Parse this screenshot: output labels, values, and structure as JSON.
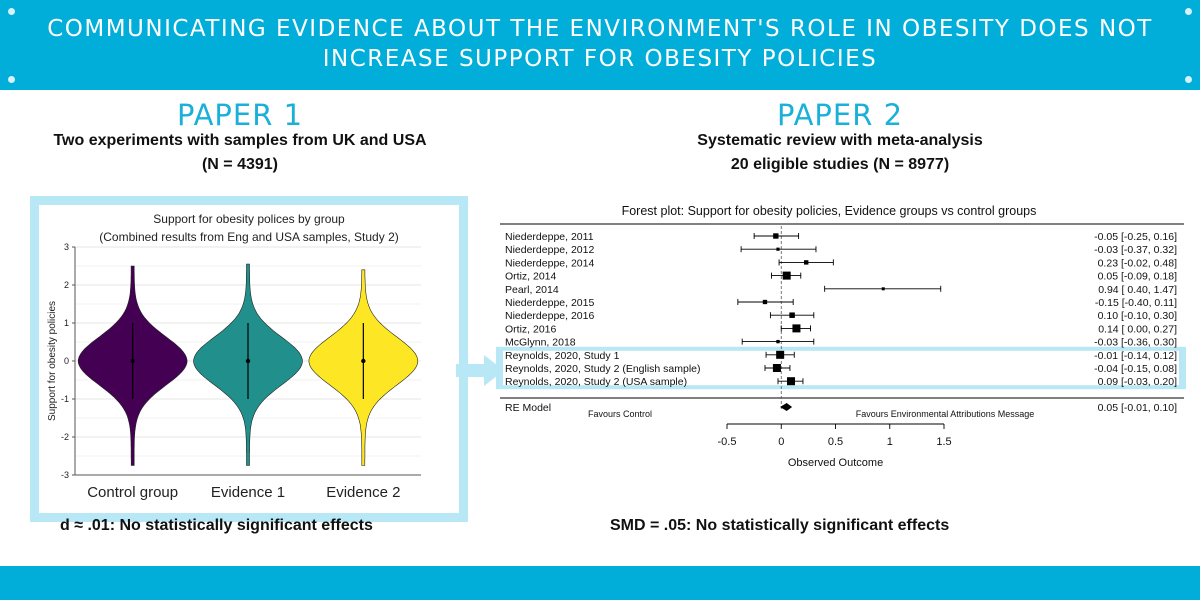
{
  "header": {
    "title": "Communicating evidence about the environment's role in obesity does not increase support for obesity policies",
    "bg_color": "#00aed9"
  },
  "paper1": {
    "title": "PAPER 1",
    "subtitle_line1": "Two experiments with samples from UK and USA",
    "subtitle_line2": "(N = 4391)",
    "result": "d ≈ .01: No statistically significant effects"
  },
  "paper2": {
    "title": "PAPER 2",
    "subtitle_line1": "Systematic review with meta-analysis",
    "subtitle_line2": "20 eligible studies (N = 8977)",
    "result": "SMD = .05: No statistically significant effects"
  },
  "chart_data": [
    {
      "type": "violin",
      "title": "Support for obesity polices by group",
      "subtitle": "(Combined results from Eng and USA samples, Study 2)",
      "ylabel": "Support for obesity policies",
      "xlabel": "",
      "ylim": [
        -3,
        3
      ],
      "yticks": [
        3,
        2,
        1,
        0,
        -1,
        -2,
        -3
      ],
      "categories": [
        "Control group",
        "Evidence 1",
        "Evidence 2"
      ],
      "colors": [
        "#440154",
        "#21908c",
        "#fde725"
      ],
      "medians": [
        0,
        0,
        0
      ],
      "whisker_low": [
        -1,
        -1,
        -1
      ],
      "whisker_high": [
        1,
        1,
        1
      ],
      "extent_min": [
        -2.75,
        -2.75,
        -2.75
      ],
      "extent_max": [
        2.5,
        2.55,
        2.4
      ],
      "grid": true
    },
    {
      "type": "forest",
      "title": "Forest plot: Support for obesity policies, Evidence groups vs control groups",
      "xlabel": "Observed Outcome",
      "xlim": [
        -0.5,
        1.5
      ],
      "xticks": [
        "-0.5",
        "0",
        "0.5",
        "1",
        "1.5"
      ],
      "left_annotation": "Favours Control",
      "right_annotation": "Favours Environmental Attributions Message",
      "studies": [
        {
          "label": "Niederdeppe, 2011",
          "est": -0.05,
          "lo": -0.25,
          "hi": 0.16,
          "ci_text": "-0.05 [-0.25, 0.16]",
          "highlight": false
        },
        {
          "label": "Niederdeppe, 2012",
          "est": -0.03,
          "lo": -0.37,
          "hi": 0.32,
          "ci_text": "-0.03 [-0.37, 0.32]",
          "highlight": false
        },
        {
          "label": "Niederdeppe, 2014",
          "est": 0.23,
          "lo": -0.02,
          "hi": 0.48,
          "ci_text": "0.23 [-0.02, 0.48]",
          "highlight": false
        },
        {
          "label": "Ortiz, 2014",
          "est": 0.05,
          "lo": -0.09,
          "hi": 0.18,
          "ci_text": "0.05 [-0.09, 0.18]",
          "highlight": false
        },
        {
          "label": "Pearl, 2014",
          "est": 0.94,
          "lo": 0.4,
          "hi": 1.47,
          "ci_text": "0.94 [ 0.40, 1.47]",
          "highlight": false
        },
        {
          "label": "Niederdeppe, 2015",
          "est": -0.15,
          "lo": -0.4,
          "hi": 0.11,
          "ci_text": "-0.15 [-0.40, 0.11]",
          "highlight": false
        },
        {
          "label": "Niederdeppe, 2016",
          "est": 0.1,
          "lo": -0.1,
          "hi": 0.3,
          "ci_text": "0.10 [-0.10, 0.30]",
          "highlight": false
        },
        {
          "label": "Ortiz, 2016",
          "est": 0.14,
          "lo": 0.0,
          "hi": 0.27,
          "ci_text": "0.14 [ 0.00, 0.27]",
          "highlight": false
        },
        {
          "label": "McGlynn, 2018",
          "est": -0.03,
          "lo": -0.36,
          "hi": 0.3,
          "ci_text": "-0.03 [-0.36, 0.30]",
          "highlight": false
        },
        {
          "label": "Reynolds, 2020, Study 1",
          "est": -0.01,
          "lo": -0.14,
          "hi": 0.12,
          "ci_text": "-0.01 [-0.14, 0.12]",
          "highlight": true
        },
        {
          "label": "Reynolds, 2020, Study 2 (English sample)",
          "est": -0.04,
          "lo": -0.15,
          "hi": 0.08,
          "ci_text": "-0.04 [-0.15, 0.08]",
          "highlight": true
        },
        {
          "label": "Reynolds, 2020, Study 2 (USA sample)",
          "est": 0.09,
          "lo": -0.03,
          "hi": 0.2,
          "ci_text": "0.09 [-0.03, 0.20]",
          "highlight": true
        }
      ],
      "summary": {
        "label": "RE Model",
        "est": 0.05,
        "lo": -0.01,
        "hi": 0.1,
        "ci_text": "0.05 [-0.01, 0.10]"
      }
    }
  ]
}
